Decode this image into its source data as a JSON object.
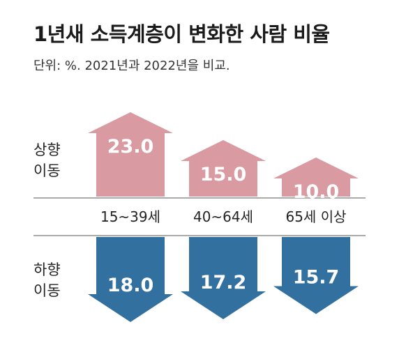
{
  "title": "1년새 소득계층이 변화한 사람 비율",
  "subtitle": "단위: %. 2021년과 2022년을 비교.",
  "labels": {
    "up": "상향\n이동",
    "down": "하향\n이동"
  },
  "colors": {
    "up": "#d99aa2",
    "down": "#32709f",
    "text_on_arrow": "#ffffff",
    "divider": "#555555"
  },
  "chart_data": {
    "type": "bar",
    "categories": [
      "15~39세",
      "40~64세",
      "65세 이상"
    ],
    "series": [
      {
        "name": "상향 이동",
        "values": [
          23.0,
          15.0,
          10.0
        ]
      },
      {
        "name": "하향 이동",
        "values": [
          18.0,
          17.2,
          15.7
        ]
      }
    ],
    "value_labels_up": [
      "23.0",
      "15.0",
      "10.0"
    ],
    "value_labels_down": [
      "18.0",
      "17.2",
      "15.7"
    ],
    "unit": "%"
  }
}
